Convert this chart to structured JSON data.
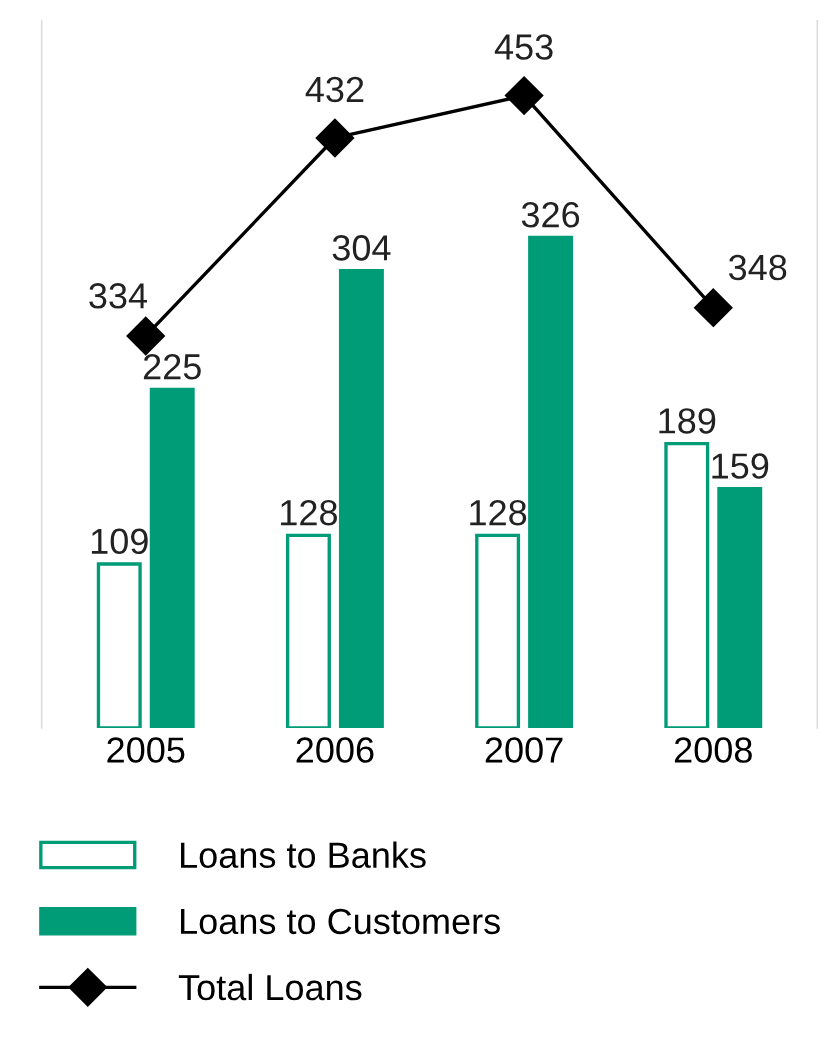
{
  "chart_data": {
    "type": "bar",
    "categories": [
      "2005",
      "2006",
      "2007",
      "2008"
    ],
    "series": [
      {
        "name": "Loans to Banks",
        "color": "#ffffff",
        "values": [
          109,
          128,
          128,
          189
        ]
      },
      {
        "name": "Loans to Customers",
        "color": "#009b77",
        "values": [
          225,
          304,
          326,
          159
        ]
      },
      {
        "name": "Total Loans",
        "type": "line",
        "axis": "y2",
        "color": "#000000",
        "marker": "diamond",
        "values": [
          334,
          432,
          453,
          348
        ]
      }
    ],
    "ylim": [
      0,
      470
    ],
    "y2lim": [
      140,
      490
    ],
    "data_labels": true,
    "legend": "bottom left",
    "grid": false
  }
}
